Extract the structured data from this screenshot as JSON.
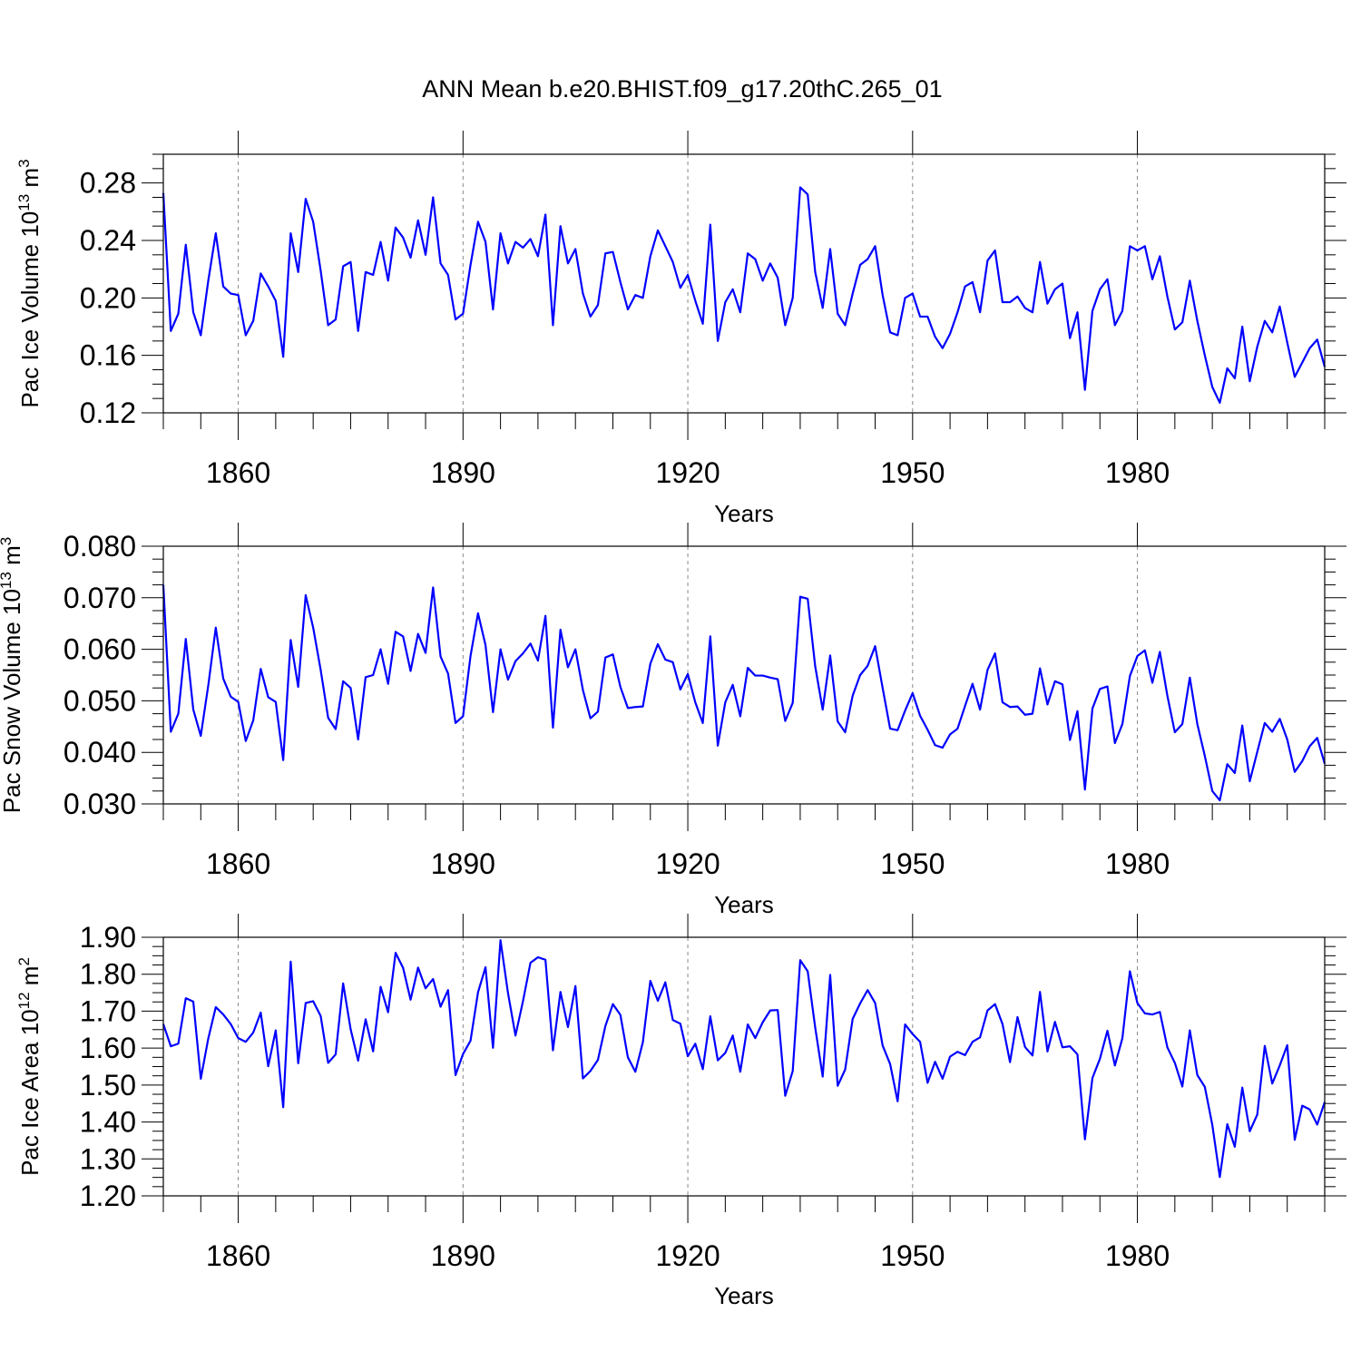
{
  "title": "ANN Mean b.e20.BHIST.f09_g17.20thC.265_01",
  "chart_data": [
    {
      "type": "line",
      "id": "ice-volume",
      "xlabel": "Years",
      "ylabel_main": "Pac Ice Volume 10",
      "ylabel_exp": "13",
      "ylabel_unit": " m",
      "ylabel_unit_exp": "3",
      "xlim": [
        1850,
        2005
      ],
      "ylim": [
        0.12,
        0.3
      ],
      "yticks": [
        0.12,
        0.16,
        0.2,
        0.24,
        0.28
      ],
      "ytick_labels": [
        "0.12",
        "0.16",
        "0.20",
        "0.24",
        "0.28"
      ],
      "xticks": [
        1860,
        1890,
        1920,
        1950,
        1980
      ],
      "xtick_labels": [
        "1860",
        "1890",
        "1920",
        "1950",
        "1980"
      ],
      "x_start": 1850,
      "color": "#0000ff",
      "values": [
        0.273,
        0.177,
        0.189,
        0.237,
        0.19,
        0.174,
        0.212,
        0.245,
        0.208,
        0.203,
        0.202,
        0.174,
        0.184,
        0.217,
        0.208,
        0.198,
        0.159,
        0.245,
        0.218,
        0.269,
        0.253,
        0.219,
        0.181,
        0.185,
        0.222,
        0.225,
        0.177,
        0.218,
        0.216,
        0.239,
        0.212,
        0.249,
        0.242,
        0.228,
        0.254,
        0.23,
        0.27,
        0.224,
        0.216,
        0.185,
        0.189,
        0.223,
        0.253,
        0.239,
        0.192,
        0.245,
        0.224,
        0.239,
        0.235,
        0.241,
        0.229,
        0.258,
        0.181,
        0.25,
        0.224,
        0.234,
        0.203,
        0.187,
        0.195,
        0.231,
        0.232,
        0.211,
        0.192,
        0.202,
        0.2,
        0.229,
        0.247,
        0.236,
        0.225,
        0.207,
        0.216,
        0.198,
        0.182,
        0.251,
        0.17,
        0.197,
        0.206,
        0.19,
        0.231,
        0.227,
        0.212,
        0.224,
        0.214,
        0.181,
        0.2,
        0.277,
        0.272,
        0.218,
        0.193,
        0.234,
        0.189,
        0.181,
        0.203,
        0.223,
        0.227,
        0.236,
        0.202,
        0.176,
        0.174,
        0.2,
        0.203,
        0.187,
        0.187,
        0.173,
        0.165,
        0.175,
        0.19,
        0.208,
        0.211,
        0.19,
        0.226,
        0.233,
        0.197,
        0.197,
        0.201,
        0.193,
        0.19,
        0.225,
        0.196,
        0.206,
        0.21,
        0.172,
        0.19,
        0.136,
        0.191,
        0.206,
        0.213,
        0.181,
        0.191,
        0.236,
        0.233,
        0.236,
        0.213,
        0.229,
        0.201,
        0.178,
        0.183,
        0.212,
        0.184,
        0.16,
        0.138,
        0.127,
        0.151,
        0.144,
        0.18,
        0.142,
        0.166,
        0.184,
        0.176,
        0.194,
        0.169,
        0.145,
        0.155,
        0.165,
        0.171,
        0.152
      ]
    },
    {
      "type": "line",
      "id": "snow-volume",
      "xlabel": "Years",
      "ylabel_main": "Pac Snow Volume 10",
      "ylabel_exp": "13",
      "ylabel_unit": " m",
      "ylabel_unit_exp": "3",
      "xlim": [
        1850,
        2005
      ],
      "ylim": [
        0.03,
        0.08
      ],
      "yticks": [
        0.03,
        0.04,
        0.05,
        0.06,
        0.07,
        0.08
      ],
      "ytick_labels": [
        "0.030",
        "0.040",
        "0.050",
        "0.060",
        "0.070",
        "0.080"
      ],
      "xticks": [
        1860,
        1890,
        1920,
        1950,
        1980
      ],
      "xtick_labels": [
        "1860",
        "1890",
        "1920",
        "1950",
        "1980"
      ],
      "x_start": 1850,
      "color": "#0000ff",
      "values": [
        0.0725,
        0.044,
        0.0475,
        0.062,
        0.0483,
        0.0432,
        0.053,
        0.0642,
        0.0543,
        0.0508,
        0.0498,
        0.0422,
        0.0462,
        0.0562,
        0.0507,
        0.0498,
        0.0385,
        0.0618,
        0.0527,
        0.0705,
        0.0642,
        0.056,
        0.0467,
        0.0445,
        0.0538,
        0.0525,
        0.0425,
        0.0546,
        0.055,
        0.06,
        0.0533,
        0.0634,
        0.0625,
        0.0558,
        0.063,
        0.0593,
        0.072,
        0.0586,
        0.0553,
        0.0457,
        0.047,
        0.0587,
        0.067,
        0.0608,
        0.0478,
        0.06,
        0.0541,
        0.0577,
        0.0592,
        0.0611,
        0.0578,
        0.0665,
        0.0448,
        0.0638,
        0.0565,
        0.06,
        0.0521,
        0.0466,
        0.0479,
        0.0584,
        0.059,
        0.0527,
        0.0486,
        0.0488,
        0.0489,
        0.0572,
        0.061,
        0.058,
        0.0575,
        0.0522,
        0.0552,
        0.0497,
        0.0457,
        0.0625,
        0.0413,
        0.0497,
        0.0531,
        0.047,
        0.0564,
        0.0549,
        0.0549,
        0.0545,
        0.0542,
        0.0461,
        0.0496,
        0.0702,
        0.0698,
        0.0567,
        0.0483,
        0.0588,
        0.046,
        0.0439,
        0.051,
        0.055,
        0.0568,
        0.0606,
        0.0525,
        0.0446,
        0.0443,
        0.0481,
        0.0515,
        0.0471,
        0.0444,
        0.0414,
        0.0409,
        0.0435,
        0.0446,
        0.049,
        0.0533,
        0.0483,
        0.056,
        0.0592,
        0.0497,
        0.0488,
        0.0489,
        0.0473,
        0.0475,
        0.0563,
        0.0493,
        0.0538,
        0.0532,
        0.0424,
        0.048,
        0.0328,
        0.0485,
        0.0523,
        0.0528,
        0.0418,
        0.0455,
        0.0548,
        0.0587,
        0.0598,
        0.0535,
        0.0595,
        0.051,
        0.0439,
        0.0455,
        0.0545,
        0.0455,
        0.0393,
        0.0325,
        0.0307,
        0.0377,
        0.036,
        0.0452,
        0.0344,
        0.0401,
        0.0457,
        0.044,
        0.0465,
        0.0425,
        0.0362,
        0.0383,
        0.0412,
        0.0428,
        0.0378
      ]
    },
    {
      "type": "line",
      "id": "ice-area",
      "xlabel": "Years",
      "ylabel_main": "Pac Ice Area 10",
      "ylabel_exp": "12",
      "ylabel_unit": " m",
      "ylabel_unit_exp": "2",
      "xlim": [
        1850,
        2005
      ],
      "ylim": [
        1.2,
        1.9
      ],
      "yticks": [
        1.2,
        1.3,
        1.4,
        1.5,
        1.6,
        1.7,
        1.8,
        1.9
      ],
      "ytick_labels": [
        "1.20",
        "1.30",
        "1.40",
        "1.50",
        "1.60",
        "1.70",
        "1.80",
        "1.90"
      ],
      "xticks": [
        1860,
        1890,
        1920,
        1950,
        1980
      ],
      "xtick_labels": [
        "1860",
        "1890",
        "1920",
        "1950",
        "1980"
      ],
      "x_start": 1850,
      "color": "#0000ff",
      "values": [
        1.665,
        1.605,
        1.612,
        1.735,
        1.726,
        1.517,
        1.626,
        1.711,
        1.691,
        1.665,
        1.627,
        1.617,
        1.642,
        1.696,
        1.551,
        1.648,
        1.44,
        1.834,
        1.559,
        1.722,
        1.727,
        1.687,
        1.56,
        1.583,
        1.775,
        1.651,
        1.566,
        1.678,
        1.591,
        1.766,
        1.697,
        1.858,
        1.817,
        1.731,
        1.818,
        1.762,
        1.787,
        1.712,
        1.757,
        1.527,
        1.584,
        1.62,
        1.751,
        1.819,
        1.601,
        1.892,
        1.749,
        1.634,
        1.727,
        1.831,
        1.846,
        1.839,
        1.594,
        1.752,
        1.657,
        1.768,
        1.518,
        1.538,
        1.568,
        1.66,
        1.719,
        1.69,
        1.575,
        1.536,
        1.616,
        1.782,
        1.728,
        1.778,
        1.676,
        1.666,
        1.578,
        1.612,
        1.543,
        1.686,
        1.567,
        1.587,
        1.634,
        1.536,
        1.664,
        1.627,
        1.67,
        1.702,
        1.703,
        1.471,
        1.538,
        1.838,
        1.808,
        1.656,
        1.523,
        1.798,
        1.498,
        1.542,
        1.679,
        1.721,
        1.757,
        1.722,
        1.607,
        1.557,
        1.456,
        1.664,
        1.638,
        1.617,
        1.506,
        1.563,
        1.517,
        1.577,
        1.59,
        1.581,
        1.617,
        1.629,
        1.702,
        1.719,
        1.665,
        1.562,
        1.684,
        1.603,
        1.58,
        1.752,
        1.591,
        1.671,
        1.602,
        1.605,
        1.583,
        1.353,
        1.519,
        1.571,
        1.647,
        1.553,
        1.627,
        1.808,
        1.722,
        1.694,
        1.691,
        1.698,
        1.602,
        1.56,
        1.496,
        1.648,
        1.527,
        1.495,
        1.392,
        1.251,
        1.394,
        1.333,
        1.493,
        1.375,
        1.42,
        1.606,
        1.504,
        1.553,
        1.608,
        1.352,
        1.444,
        1.434,
        1.393,
        1.454
      ]
    }
  ]
}
